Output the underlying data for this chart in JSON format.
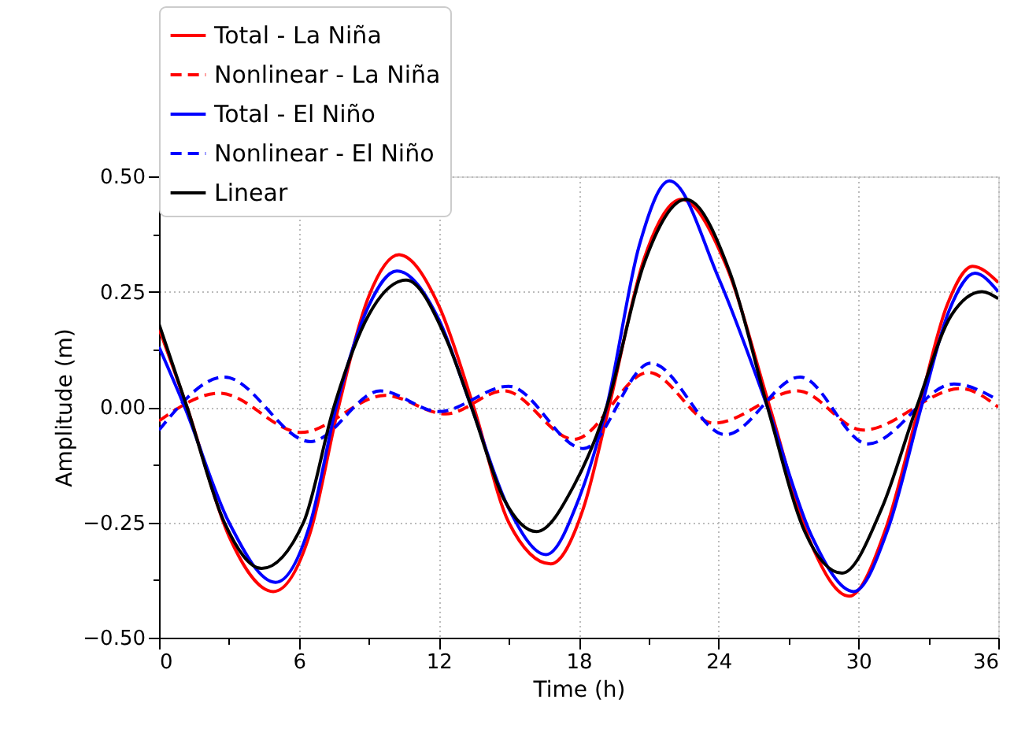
{
  "chart_data": {
    "type": "line",
    "xlabel": "Time (h)",
    "ylabel": "Amplitude (m)",
    "xlim": [
      0,
      36
    ],
    "ylim": [
      -0.5,
      0.5
    ],
    "xticks": [
      0,
      {
        "value": 3,
        "label": null
      },
      6,
      {
        "value": 9,
        "label": null
      },
      12,
      {
        "value": 15,
        "label": null
      },
      18,
      {
        "value": 21,
        "label": null
      },
      24,
      {
        "value": 27,
        "label": null
      },
      30,
      {
        "value": 33,
        "label": null
      },
      36
    ],
    "yticks": [
      {
        "value": -0.5,
        "label": "−0.50"
      },
      {
        "value": -0.375,
        "label": null
      },
      {
        "value": -0.25,
        "label": "−0.25"
      },
      {
        "value": -0.125,
        "label": null
      },
      {
        "value": 0,
        "label": "0.00"
      },
      {
        "value": 0.125,
        "label": null
      },
      {
        "value": 0.25,
        "label": "0.25"
      },
      {
        "value": 0.375,
        "label": null
      },
      {
        "value": 0.5,
        "label": "0.50"
      }
    ],
    "grid": true,
    "legend": "top left",
    "marker": "none",
    "series": [
      {
        "name": "Total - La Niña",
        "color": "#ff0000",
        "line_style": "solid",
        "x": [
          0,
          1.2,
          3,
          4.9,
          6.5,
          7.7,
          9,
          10.3,
          12,
          13.5,
          15,
          16.8,
          18.2,
          19.3,
          20.8,
          22.4,
          24.3,
          26.2,
          28,
          29.6,
          31.2,
          32.6,
          33.8,
          34.9,
          36
        ],
        "values": [
          0.17,
          0,
          -0.28,
          -0.4,
          -0.27,
          0,
          0.24,
          0.33,
          0.22,
          0,
          -0.25,
          -0.34,
          -0.22,
          0,
          0.32,
          0.45,
          0.31,
          0,
          -0.3,
          -0.41,
          -0.26,
          0,
          0.22,
          0.305,
          0.27
        ]
      },
      {
        "name": "Nonlinear - La Niña",
        "color": "#ff0000",
        "line_style": "dashed",
        "x": [
          0,
          2.6,
          6.1,
          9.7,
          12.3,
          14.8,
          17.8,
          21,
          23.8,
          27.4,
          30.2,
          34.4,
          36
        ],
        "values": [
          -0.03,
          0.03,
          -0.055,
          0.025,
          -0.015,
          0.035,
          -0.07,
          0.075,
          -0.035,
          0.035,
          -0.05,
          0.04,
          0.0
        ]
      },
      {
        "name": "Total - El Niño",
        "color": "#0000ff",
        "line_style": "solid",
        "x": [
          0,
          1.1,
          3,
          5,
          6.5,
          7.6,
          9,
          10.2,
          12,
          13.4,
          15,
          16.6,
          18,
          19.2,
          20.6,
          21.9,
          24,
          26.1,
          28,
          29.8,
          31.3,
          32.7,
          33.9,
          35,
          36
        ],
        "values": [
          0.13,
          0,
          -0.25,
          -0.38,
          -0.25,
          0,
          0.22,
          0.295,
          0.19,
          0,
          -0.22,
          -0.32,
          -0.2,
          0,
          0.35,
          0.49,
          0.28,
          0,
          -0.28,
          -0.4,
          -0.26,
          0,
          0.21,
          0.29,
          0.25
        ]
      },
      {
        "name": "Nonlinear - El Niño",
        "color": "#0000ff",
        "line_style": "dashed",
        "x": [
          0,
          2.8,
          6.5,
          9.5,
          12,
          15,
          18.2,
          21.1,
          24.3,
          27.5,
          30.4,
          34.1,
          36
        ],
        "values": [
          -0.05,
          0.065,
          -0.075,
          0.035,
          -0.01,
          0.045,
          -0.09,
          0.095,
          -0.06,
          0.065,
          -0.08,
          0.05,
          0.015
        ]
      },
      {
        "name": "Linear",
        "color": "#000000",
        "line_style": "solid",
        "x": [
          0,
          1.2,
          2.8,
          4.4,
          6.2,
          7.5,
          9,
          10.6,
          12.3,
          13.4,
          14.8,
          16.2,
          17.8,
          19.2,
          20.8,
          22.6,
          24.5,
          26.1,
          27.7,
          29.3,
          31,
          32.5,
          34,
          35.3,
          36
        ],
        "values": [
          0.18,
          0,
          -0.25,
          -0.35,
          -0.25,
          0,
          0.2,
          0.275,
          0.15,
          0,
          -0.2,
          -0.27,
          -0.17,
          0,
          0.31,
          0.45,
          0.29,
          0,
          -0.27,
          -0.36,
          -0.22,
          0,
          0.2,
          0.25,
          0.235
        ]
      }
    ]
  }
}
